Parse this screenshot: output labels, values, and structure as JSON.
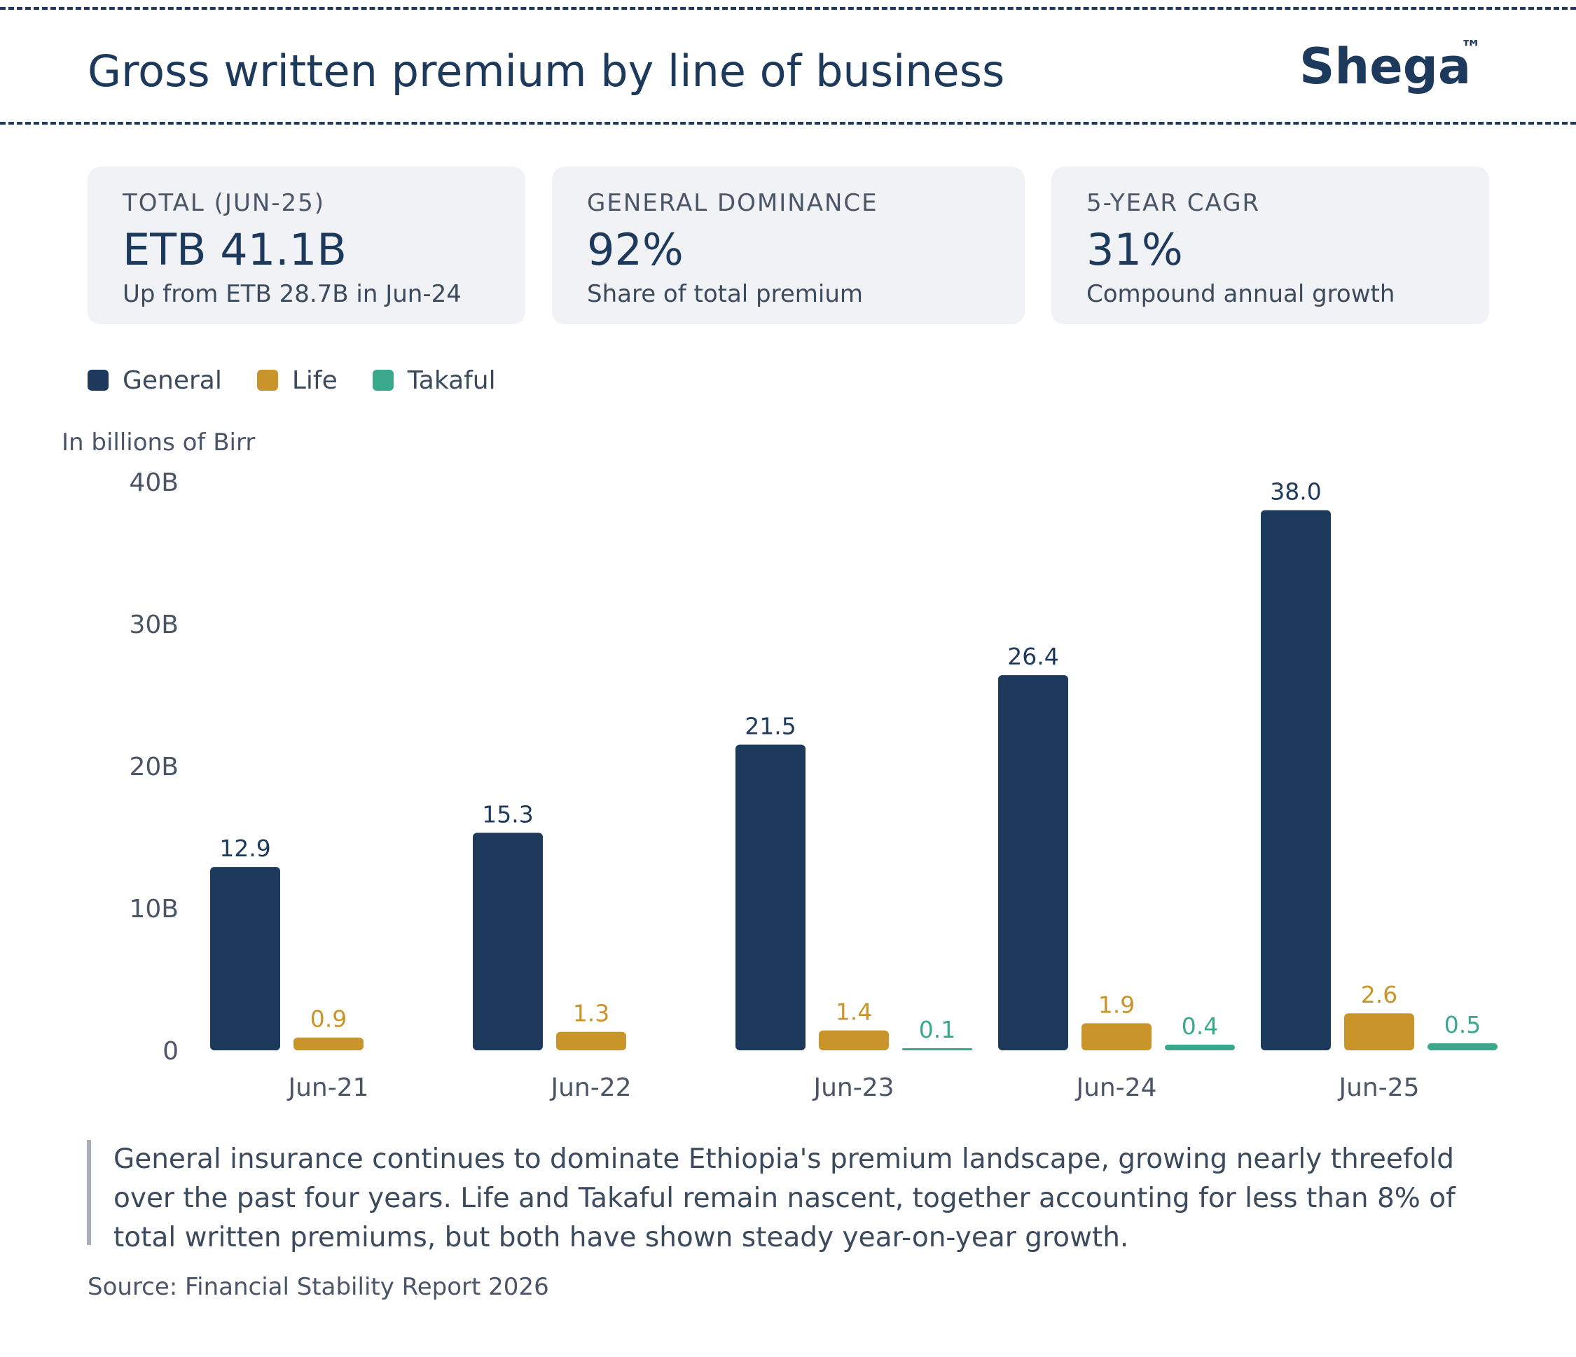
{
  "header": {
    "title": "Gross written premium by line of business",
    "brand": "Shega",
    "brand_mark": "™"
  },
  "cards": [
    {
      "label": "TOTAL (JUN-25)",
      "value": "ETB 41.1B",
      "sub": "Up from ETB 28.7B in Jun-24"
    },
    {
      "label": "GENERAL DOMINANCE",
      "value": "92%",
      "sub": "Share of total premium"
    },
    {
      "label": "5-YEAR CAGR",
      "value": "31%",
      "sub": "Compound annual growth"
    }
  ],
  "colors": {
    "general": "#1d3a5c",
    "life": "#c9952b",
    "takaful": "#3aa88c",
    "axis_text": "#4a5568"
  },
  "chart_data": {
    "type": "bar",
    "title": "Gross written premium by line of business",
    "ylabel": "In billions of Birr",
    "xlabel": "",
    "ylim": [
      0,
      40
    ],
    "yticks": [
      0,
      10,
      20,
      30,
      40
    ],
    "ytick_labels": [
      "0",
      "10B",
      "20B",
      "30B",
      "40B"
    ],
    "categories": [
      "Jun-21",
      "Jun-22",
      "Jun-23",
      "Jun-24",
      "Jun-25"
    ],
    "series": [
      {
        "name": "General",
        "key": "general",
        "values": [
          12.9,
          15.3,
          21.5,
          26.4,
          38.0
        ],
        "labels": [
          "12.9",
          "15.3",
          "21.5",
          "26.4",
          "38.0"
        ]
      },
      {
        "name": "Life",
        "key": "life",
        "values": [
          0.9,
          1.3,
          1.4,
          1.9,
          2.6
        ],
        "labels": [
          "0.9",
          "1.3",
          "1.4",
          "1.9",
          "2.6"
        ]
      },
      {
        "name": "Takaful",
        "key": "takaful",
        "values": [
          null,
          null,
          0.1,
          0.4,
          0.5
        ],
        "labels": [
          null,
          null,
          "0.1",
          "0.4",
          "0.5"
        ]
      }
    ],
    "legend": [
      "General",
      "Life",
      "Takaful"
    ],
    "legend_position": "top-left",
    "grid": false
  },
  "note": "General insurance continues to dominate Ethiopia's premium landscape, growing nearly threefold over the past four years. Life and Takaful remain nascent, together accounting for less than 8% of total written premiums, but both have shown steady year-on-year growth.",
  "source": "Source: Financial Stability Report 2026"
}
